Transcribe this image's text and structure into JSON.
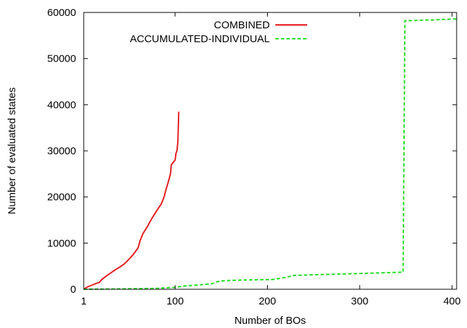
{
  "chart_data": {
    "type": "line",
    "title": "",
    "xlabel": "Number of BOs",
    "ylabel": "Number of evaluated states",
    "xlim": [
      1,
      405
    ],
    "ylim": [
      0,
      60000
    ],
    "xticks": [
      1,
      100,
      200,
      300,
      400
    ],
    "yticks": [
      0,
      10000,
      20000,
      30000,
      40000,
      50000,
      60000
    ],
    "grid": false,
    "legend_position": "top-right",
    "series": [
      {
        "name": "COMBINED",
        "color": "#e41a1c",
        "style": "solid",
        "points": [
          [
            1,
            0
          ],
          [
            5,
            500
          ],
          [
            10,
            900
          ],
          [
            15,
            1300
          ],
          [
            18,
            1500
          ],
          [
            20,
            2000
          ],
          [
            25,
            2800
          ],
          [
            30,
            3500
          ],
          [
            35,
            4200
          ],
          [
            40,
            4800
          ],
          [
            45,
            5500
          ],
          [
            50,
            6500
          ],
          [
            55,
            7600
          ],
          [
            60,
            9000
          ],
          [
            62,
            10500
          ],
          [
            65,
            12000
          ],
          [
            70,
            13600
          ],
          [
            75,
            15400
          ],
          [
            80,
            17000
          ],
          [
            85,
            18500
          ],
          [
            88,
            20000
          ],
          [
            90,
            21500
          ],
          [
            93,
            23500
          ],
          [
            95,
            25000
          ],
          [
            96,
            27000
          ],
          [
            98,
            27500
          ],
          [
            100,
            28000
          ],
          [
            101,
            29500
          ],
          [
            102,
            30000
          ],
          [
            103,
            32000
          ],
          [
            104,
            38500
          ]
        ]
      },
      {
        "name": "ACCUMULATED-INDIVIDUAL",
        "color": "#22dd22",
        "style": "dashed",
        "points": [
          [
            1,
            0
          ],
          [
            50,
            100
          ],
          [
            80,
            200
          ],
          [
            100,
            400
          ],
          [
            110,
            700
          ],
          [
            130,
            1000
          ],
          [
            140,
            1200
          ],
          [
            145,
            1600
          ],
          [
            150,
            1800
          ],
          [
            160,
            1900
          ],
          [
            170,
            2000
          ],
          [
            205,
            2100
          ],
          [
            215,
            2400
          ],
          [
            225,
            2800
          ],
          [
            227,
            3000
          ],
          [
            260,
            3200
          ],
          [
            300,
            3400
          ],
          [
            347,
            3700
          ],
          [
            349,
            58200
          ],
          [
            380,
            58400
          ],
          [
            405,
            58600
          ]
        ]
      }
    ]
  }
}
